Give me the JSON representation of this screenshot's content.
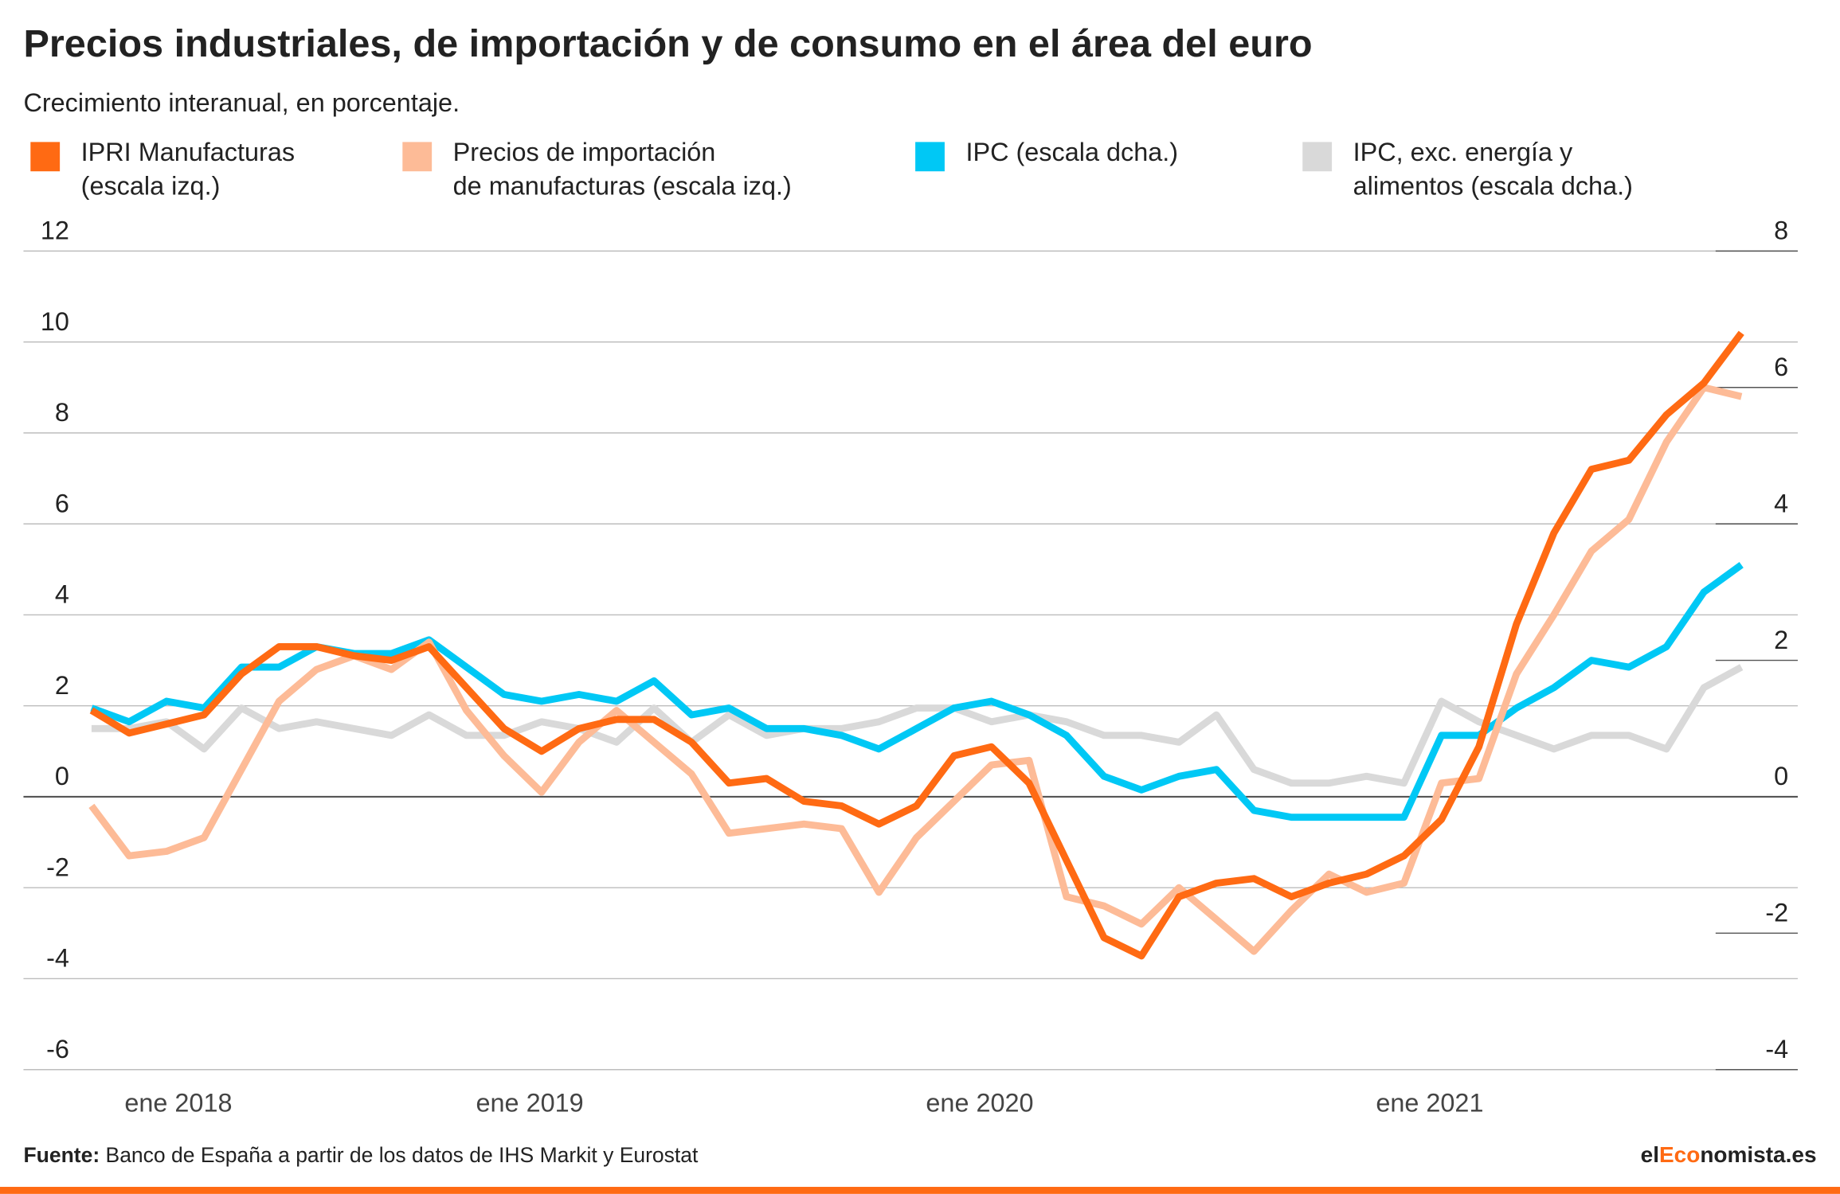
{
  "chart_data": {
    "type": "line",
    "title": "Precios industriales, de importación y de consumo en el área del euro",
    "subtitle": "Crecimiento interanual, en porcentaje.",
    "source_label": "Fuente:",
    "source": "Banco de España a partir de los datos de IHS Markit y Eurostat",
    "brand": [
      "el",
      "Eco",
      "nomista.es"
    ],
    "categories": [
      "ene 2018",
      null,
      null,
      null,
      null,
      null,
      null,
      null,
      null,
      null,
      null,
      null,
      "ene 2019",
      null,
      null,
      null,
      null,
      null,
      null,
      null,
      null,
      null,
      null,
      null,
      "ene 2020",
      null,
      null,
      null,
      null,
      null,
      null,
      null,
      null,
      null,
      null,
      null,
      "ene 2021",
      null,
      null,
      null,
      null,
      null,
      null,
      null,
      null
    ],
    "ylim": [
      -6,
      12
    ],
    "yticks": [
      -6,
      -4,
      -2,
      0,
      2,
      4,
      6,
      8,
      10,
      12
    ],
    "y2lim": [
      -4,
      8
    ],
    "y2ticks": [
      -4,
      -2,
      0,
      2,
      4,
      6,
      8
    ],
    "grid": true,
    "series": [
      {
        "name": "IPC, exc. energía y\nalimentos (escala dcha.)",
        "color": "#d9d9d9",
        "axis": "y2",
        "values": [
          1.0,
          1.0,
          1.1,
          0.7,
          1.3,
          1.0,
          1.1,
          1.0,
          0.9,
          1.2,
          0.9,
          0.9,
          1.1,
          1.0,
          0.8,
          1.3,
          0.8,
          1.2,
          0.9,
          1.0,
          1.0,
          1.1,
          1.3,
          1.3,
          1.1,
          1.2,
          1.1,
          0.9,
          0.9,
          0.8,
          1.2,
          0.4,
          0.2,
          0.2,
          0.3,
          0.2,
          1.4,
          1.1,
          0.9,
          0.7,
          0.9,
          0.9,
          0.7,
          1.6,
          1.9
        ]
      },
      {
        "name": "IPC (escala dcha.)",
        "color": "#00c8f5",
        "axis": "y2",
        "values": [
          1.3,
          1.1,
          1.4,
          1.3,
          1.9,
          1.9,
          2.2,
          2.1,
          2.1,
          2.3,
          1.9,
          1.5,
          1.4,
          1.5,
          1.4,
          1.7,
          1.2,
          1.3,
          1.0,
          1.0,
          0.9,
          0.7,
          1.0,
          1.3,
          1.4,
          1.2,
          0.9,
          0.3,
          0.1,
          0.3,
          0.4,
          -0.2,
          -0.3,
          -0.3,
          -0.3,
          -0.3,
          0.9,
          0.9,
          1.3,
          1.6,
          2.0,
          1.9,
          2.2,
          3.0,
          3.4
        ]
      },
      {
        "name": "Precios de importación\nde manufacturas (escala izq.)",
        "color": "#fdbb97",
        "values": [
          -0.2,
          -1.3,
          -1.2,
          -0.9,
          0.6,
          2.1,
          2.8,
          3.1,
          2.8,
          3.4,
          1.9,
          0.9,
          0.1,
          1.2,
          1.9,
          1.2,
          0.5,
          -0.8,
          -0.7,
          -0.6,
          -0.7,
          -2.1,
          -0.9,
          -0.1,
          0.7,
          0.8,
          -2.2,
          -2.4,
          -2.8,
          -2.0,
          -2.7,
          -3.4,
          -2.5,
          -1.7,
          -2.1,
          -1.9,
          0.3,
          0.4,
          2.7,
          4.0,
          5.4,
          6.1,
          7.8,
          9.0,
          8.8
        ]
      },
      {
        "name": "IPRI Manufacturas\n(escala izq.)",
        "color": "#ff6a13",
        "values": [
          1.9,
          1.4,
          1.6,
          1.8,
          2.7,
          3.3,
          3.3,
          3.1,
          3.0,
          3.3,
          2.4,
          1.5,
          1.0,
          1.5,
          1.7,
          1.7,
          1.2,
          0.3,
          0.4,
          -0.1,
          -0.2,
          -0.6,
          -0.2,
          0.9,
          1.1,
          0.3,
          -1.4,
          -3.1,
          -3.5,
          -2.2,
          -1.9,
          -1.8,
          -2.2,
          -1.9,
          -1.7,
          -1.3,
          -0.5,
          1.1,
          3.8,
          5.8,
          7.2,
          7.4,
          8.4,
          9.1,
          10.2
        ]
      }
    ]
  }
}
